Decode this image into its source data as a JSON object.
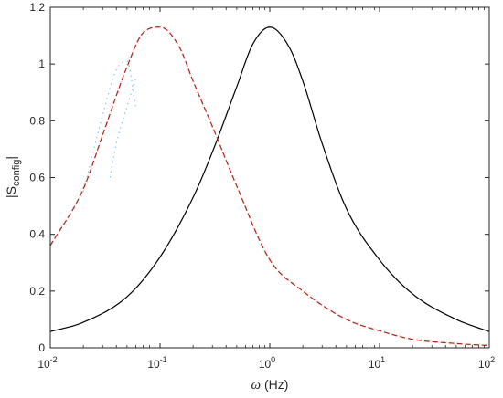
{
  "chart_data": {
    "type": "line",
    "title": "",
    "xlabel": "ω (Hz)",
    "ylabel": "|S_config|",
    "xscale": "log",
    "xlim": [
      0.01,
      100
    ],
    "ylim": [
      0,
      1.2
    ],
    "grid": false,
    "legend": "none",
    "xticks": [
      {
        "value": 0.01,
        "base": "10",
        "exp": "-2"
      },
      {
        "value": 0.1,
        "base": "10",
        "exp": "-1"
      },
      {
        "value": 1,
        "base": "10",
        "exp": "0"
      },
      {
        "value": 10,
        "base": "10",
        "exp": "1"
      },
      {
        "value": 100,
        "base": "10",
        "exp": "2"
      }
    ],
    "yticks": [
      "0",
      "0.2",
      "0.4",
      "0.6",
      "0.8",
      "1",
      "1.2"
    ],
    "series": [
      {
        "style": "solid",
        "color": "#000000",
        "x": [
          0.01,
          0.02,
          0.05,
          0.1,
          0.2,
          0.3,
          0.5,
          0.7,
          1,
          1.5,
          2,
          3,
          5,
          10,
          20,
          50,
          100
        ],
        "y": [
          0.057,
          0.09,
          0.18,
          0.32,
          0.53,
          0.69,
          0.92,
          1.07,
          1.13,
          1.06,
          0.94,
          0.72,
          0.49,
          0.31,
          0.19,
          0.1,
          0.057
        ]
      },
      {
        "style": "dashed",
        "color": "#a5271c",
        "x": [
          0.01,
          0.02,
          0.03,
          0.05,
          0.07,
          0.1,
          0.15,
          0.2,
          0.3,
          0.5,
          1,
          2,
          5,
          10,
          20,
          50,
          100
        ],
        "y": [
          0.36,
          0.56,
          0.75,
          0.99,
          1.11,
          1.13,
          1.06,
          0.94,
          0.78,
          0.57,
          0.31,
          0.2,
          0.1,
          0.06,
          0.03,
          0.015,
          0.008
        ]
      }
    ],
    "colors": {
      "dotted_trace": "#8fc7e6",
      "halo": "#f2b6b6"
    }
  }
}
